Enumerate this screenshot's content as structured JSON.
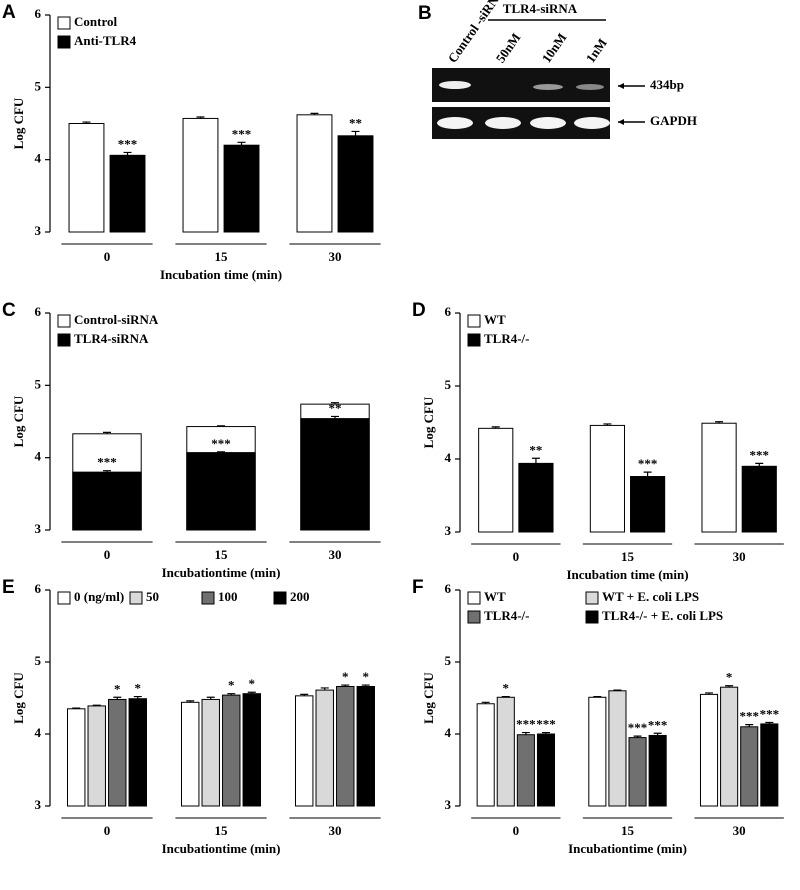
{
  "chart_data": [
    {
      "type": "bar",
      "panel": "A",
      "y_label": "Log CFU",
      "x_label": "Incubation time (min)",
      "categories": [
        "0",
        "15",
        "30"
      ],
      "ylim": [
        3,
        6
      ],
      "yticks": [
        3,
        4,
        5,
        6
      ],
      "legend_columns": 1,
      "series": [
        {
          "name": "Control",
          "color": "#ffffff",
          "values": [
            4.5,
            4.57,
            4.62
          ],
          "errors": [
            0.02,
            0.02,
            0.02
          ]
        },
        {
          "name": "Anti-TLR4",
          "color": "#000000",
          "values": [
            4.06,
            4.2,
            4.33
          ],
          "errors": [
            0.04,
            0.04,
            0.06
          ],
          "annotations": [
            "***",
            "***",
            "**"
          ]
        }
      ]
    },
    {
      "type": "overlap_bar",
      "panel": "C",
      "y_label": "Log CFU",
      "x_label": "Incubationtime (min)",
      "categories": [
        "0",
        "15",
        "30"
      ],
      "ylim": [
        3,
        6
      ],
      "yticks": [
        3,
        4,
        5,
        6
      ],
      "legend_columns": 1,
      "series": [
        {
          "name": "Control-siRNA",
          "color": "#ffffff",
          "values": [
            4.33,
            4.43,
            4.74
          ],
          "errors": [
            0.02,
            0.01,
            0.02
          ]
        },
        {
          "name": "TLR4-siRNA",
          "color": "#000000",
          "values": [
            3.8,
            4.07,
            4.54
          ],
          "errors": [
            0.02,
            0.01,
            0.03
          ],
          "annotations": [
            "***",
            "***",
            "**"
          ]
        }
      ]
    },
    {
      "type": "bar",
      "panel": "D",
      "y_label": "Log CFU",
      "x_label": "Incubation time (min)",
      "categories": [
        "0",
        "15",
        "30"
      ],
      "ylim": [
        3,
        6
      ],
      "yticks": [
        3,
        4,
        5,
        6
      ],
      "legend_columns": 1,
      "series": [
        {
          "name": "WT",
          "color": "#ffffff",
          "values": [
            4.42,
            4.46,
            4.49
          ],
          "errors": [
            0.02,
            0.02,
            0.02
          ]
        },
        {
          "name": "TLR4-/-",
          "color": "#000000",
          "values": [
            3.94,
            3.76,
            3.9
          ],
          "errors": [
            0.07,
            0.06,
            0.04
          ],
          "annotations": [
            "**",
            "***",
            "***"
          ]
        }
      ]
    },
    {
      "type": "bar",
      "panel": "E",
      "y_label": "Log CFU",
      "x_label": "Incubationtime (min)",
      "categories": [
        "0",
        "15",
        "30"
      ],
      "ylim": [
        3,
        6
      ],
      "yticks": [
        3,
        4,
        5,
        6
      ],
      "legend_columns": 4,
      "series": [
        {
          "name": "0 (ng/ml)",
          "color": "#ffffff",
          "values": [
            4.35,
            4.44,
            4.53
          ],
          "errors": [
            0.01,
            0.02,
            0.02
          ]
        },
        {
          "name": "50",
          "color": "#d9d9d9",
          "values": [
            4.39,
            4.48,
            4.61
          ],
          "errors": [
            0.01,
            0.03,
            0.03
          ]
        },
        {
          "name": "100",
          "color": "#707070",
          "values": [
            4.48,
            4.54,
            4.66
          ],
          "errors": [
            0.03,
            0.02,
            0.02
          ],
          "annotations": [
            "*",
            "*",
            "*"
          ]
        },
        {
          "name": "200",
          "color": "#000000",
          "values": [
            4.49,
            4.56,
            4.66
          ],
          "errors": [
            0.03,
            0.02,
            0.02
          ],
          "annotations": [
            "*",
            "*",
            "*"
          ]
        }
      ]
    },
    {
      "type": "bar",
      "panel": "F",
      "y_label": "Log CFU",
      "x_label": "Incubationtime (min)",
      "categories": [
        "0",
        "15",
        "30"
      ],
      "ylim": [
        3,
        6
      ],
      "yticks": [
        3,
        4,
        5,
        6
      ],
      "legend_columns": 2,
      "series": [
        {
          "name": "WT",
          "color": "#ffffff",
          "values": [
            4.42,
            4.51,
            4.55
          ],
          "errors": [
            0.02,
            0.01,
            0.02
          ]
        },
        {
          "name": "WT + E. coli LPS",
          "color": "#d9d9d9",
          "values": [
            4.51,
            4.6,
            4.65
          ],
          "errors": [
            0.01,
            0.01,
            0.02
          ],
          "annotations": [
            "*",
            null,
            "*"
          ]
        },
        {
          "name": "TLR4-/-",
          "color": "#707070",
          "values": [
            3.99,
            3.95,
            4.1
          ],
          "errors": [
            0.03,
            0.02,
            0.03
          ],
          "annotations": [
            "***",
            "***",
            "***"
          ]
        },
        {
          "name": "TLR4-/- + E. coli LPS",
          "color": "#000000",
          "values": [
            4.0,
            3.98,
            4.14
          ],
          "errors": [
            0.02,
            0.03,
            0.02
          ],
          "annotations": [
            "***",
            "***",
            "***"
          ]
        }
      ]
    }
  ],
  "gel": {
    "panel": "B",
    "header": "TLR4-siRNA",
    "lanes": [
      "Control -siRNA",
      "50nM",
      "10nM",
      "1nM"
    ],
    "markers": [
      "434bp",
      "GAPDH"
    ]
  }
}
